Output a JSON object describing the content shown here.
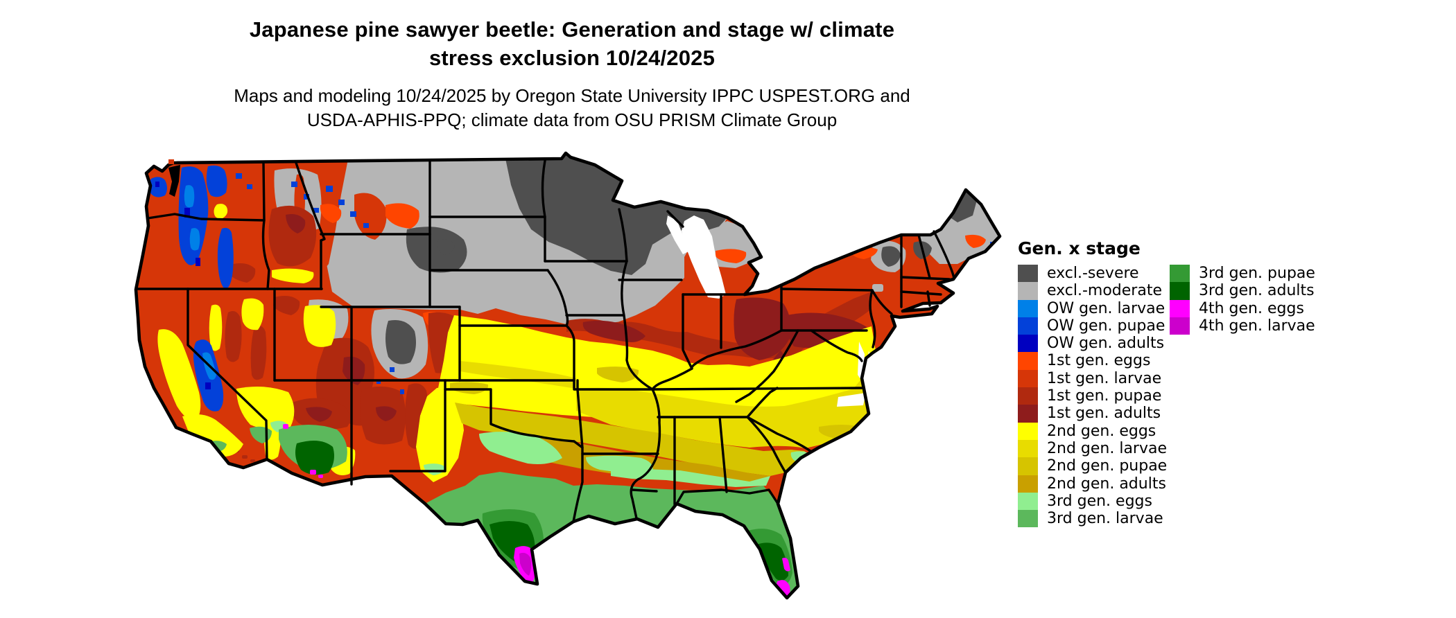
{
  "figure": {
    "title_line1": "Japanese pine sawyer beetle: Generation and stage w/ climate",
    "title_line2": "stress exclusion 10/24/2025",
    "subtitle_line1": "Maps and modeling 10/24/2025 by Oregon State University IPPC USPEST.ORG and",
    "subtitle_line2": "USDA-APHIS-PPQ; climate data from OSU PRISM Climate Group"
  },
  "legend": {
    "title": "Gen. x stage",
    "column1": [
      {
        "key": "exclsev",
        "label": "excl.-severe",
        "color": "#4f4f4f"
      },
      {
        "key": "exclmod",
        "label": "excl.-moderate",
        "color": "#b5b5b5"
      },
      {
        "key": "owlarv",
        "label": "OW gen. larvae",
        "color": "#0080e8"
      },
      {
        "key": "owpup",
        "label": "OW gen. pupae",
        "color": "#0341d9"
      },
      {
        "key": "owad",
        "label": "OW gen. adults",
        "color": "#0000c0"
      },
      {
        "key": "g1egg",
        "label": "1st gen. eggs",
        "color": "#ff4500"
      },
      {
        "key": "g1larv",
        "label": "1st gen. larvae",
        "color": "#d63608"
      },
      {
        "key": "g1pup",
        "label": "1st gen. pupae",
        "color": "#b0290f"
      },
      {
        "key": "g1ad",
        "label": "1st gen. adults",
        "color": "#8e1c1c"
      },
      {
        "key": "g2egg",
        "label": "2nd gen. eggs",
        "color": "#ffff00"
      },
      {
        "key": "g2larv",
        "label": "2nd gen. larvae",
        "color": "#e8dc00"
      },
      {
        "key": "g2pup",
        "label": "2nd gen. pupae",
        "color": "#d6c400"
      },
      {
        "key": "g2ad",
        "label": "2nd gen. adults",
        "color": "#c9a000"
      },
      {
        "key": "g3egg",
        "label": "3rd gen. eggs",
        "color": "#90ee90"
      },
      {
        "key": "g3larv",
        "label": "3rd gen. larvae",
        "color": "#5cb85c"
      }
    ],
    "column2": [
      {
        "key": "g3pup",
        "label": "3rd gen. pupae",
        "color": "#349a34"
      },
      {
        "key": "g3ad",
        "label": "3rd gen. adults",
        "color": "#006400"
      },
      {
        "key": "g4egg",
        "label": "4th gen. eggs",
        "color": "#ff00ff"
      },
      {
        "key": "g4larv",
        "label": "4th gen. larvae",
        "color": "#cc00cc"
      }
    ]
  },
  "map": {
    "depicts": "Contiguous United States with state boundaries, raster-colored by beetle generation and life stage",
    "background": "#ffffff",
    "boundary_color": "#000000"
  }
}
